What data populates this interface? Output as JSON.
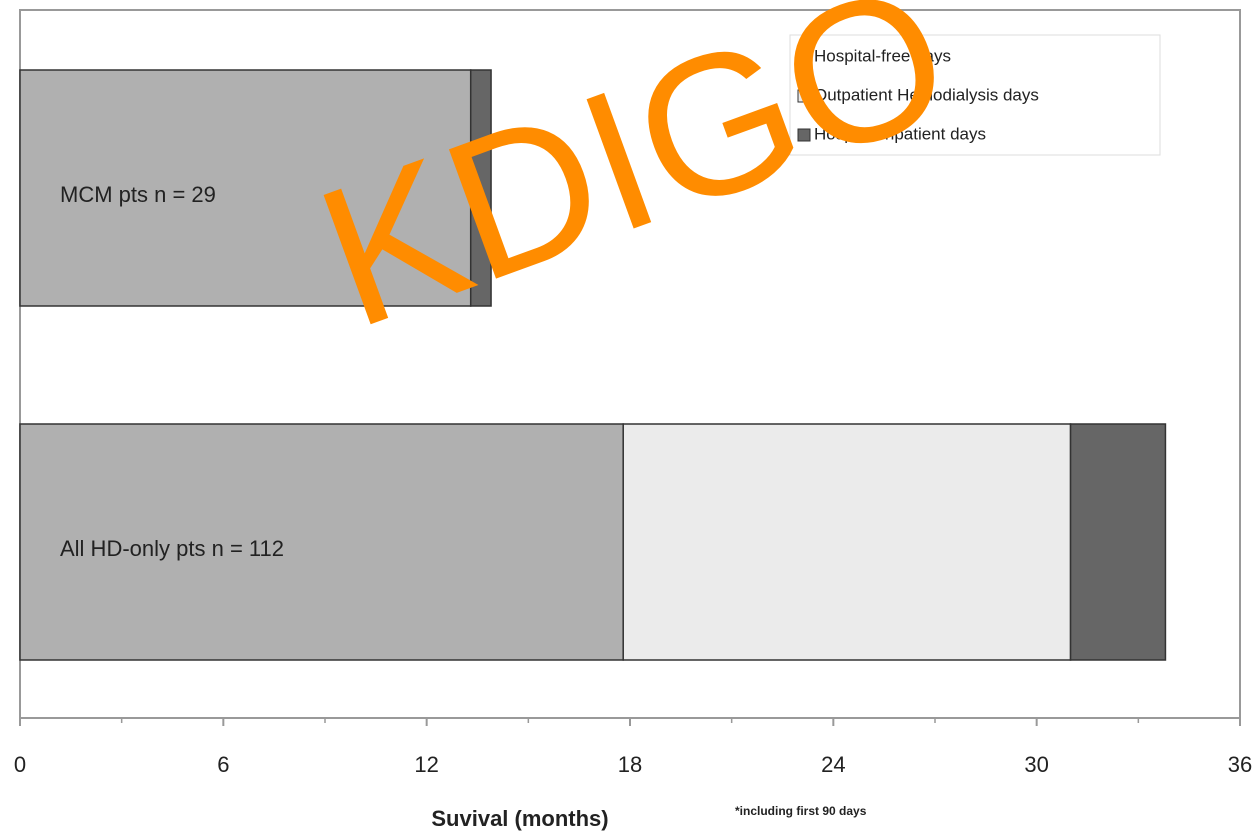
{
  "chart_data": {
    "type": "stacked-barh",
    "categories": [
      "MCM pts n = 29",
      "All HD-only pts n = 112"
    ],
    "series": [
      {
        "name": "Hospital-free days",
        "color": "#b0b0b0",
        "values": [
          13.3,
          17.8
        ]
      },
      {
        "name": "Outpatient Hemodialysis days",
        "color": "#ebebeb",
        "values": [
          0,
          13.2
        ]
      },
      {
        "name": "Hospital Inpatient days",
        "color": "#666666",
        "values": [
          0.6,
          2.8
        ]
      }
    ],
    "xlabel": "Suvival (months)",
    "annotation": "*including first 90 days",
    "watermark": "KDIGO",
    "xlim": [
      0,
      36
    ],
    "xticks": [
      0,
      6,
      12,
      18,
      24,
      30,
      36
    ],
    "xminorticks": [
      3,
      9,
      15,
      21,
      27,
      33
    ],
    "legend": "upper right"
  }
}
